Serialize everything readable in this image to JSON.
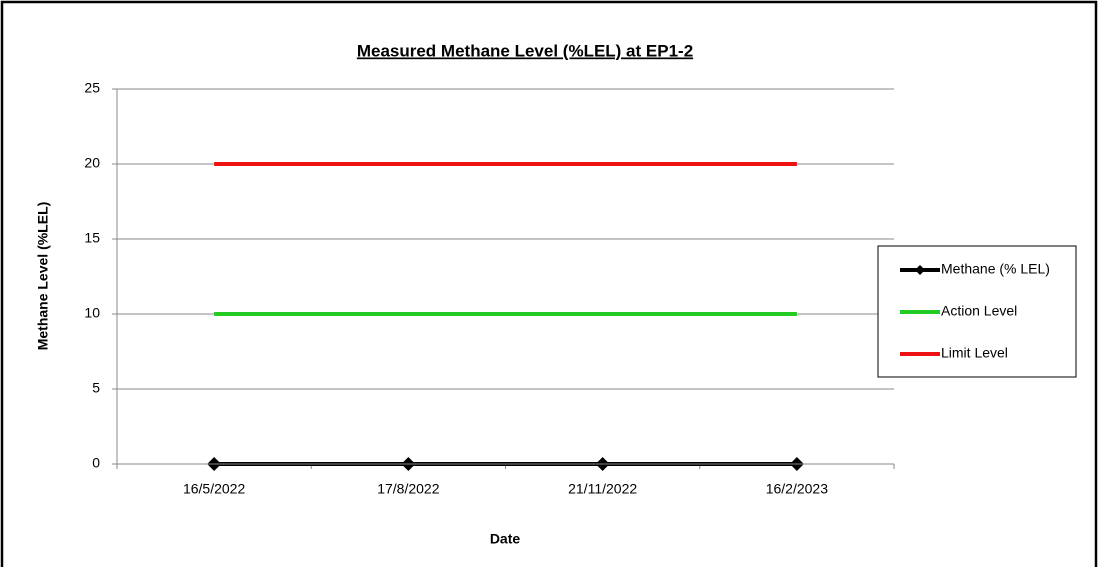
{
  "chart_data": {
    "type": "line",
    "title": "Measured Methane Level (%LEL) at EP1-2",
    "x_label": "Date",
    "y_label": "Methane Level (%LEL)",
    "categories": [
      "16/5/2022",
      "17/8/2022",
      "21/11/2022",
      "16/2/2023"
    ],
    "series": [
      {
        "name": "Methane (% LEL)",
        "color": "#000000",
        "marker": "diamond",
        "values": [
          0,
          0,
          0,
          0
        ]
      },
      {
        "name": "Action Level",
        "color": "#22cc22",
        "values": [
          10,
          10,
          10,
          10
        ]
      },
      {
        "name": "Limit Level",
        "color": "#ee1111",
        "values": [
          20,
          20,
          20,
          20
        ]
      }
    ],
    "ylim": [
      0,
      25
    ],
    "yticks": [
      0,
      5,
      10,
      15,
      20,
      25
    ],
    "grid": true,
    "legend": "right"
  }
}
